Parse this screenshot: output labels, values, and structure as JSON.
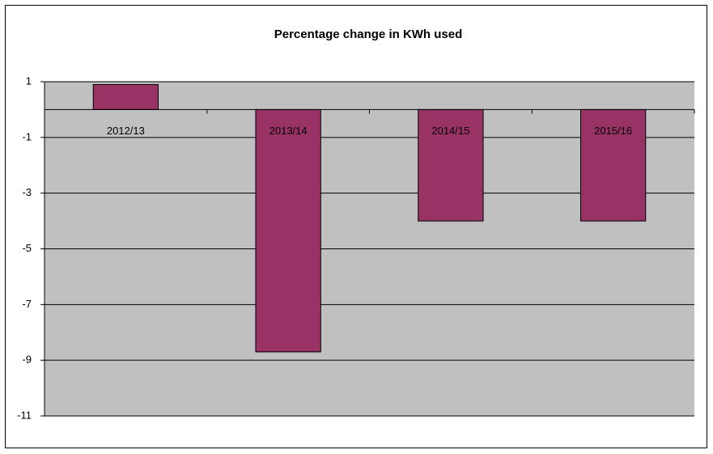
{
  "chart_data": {
    "type": "bar",
    "title": "Percentage change in KWh used",
    "categories": [
      "2012/13",
      "2013/14",
      "2014/15",
      "2015/16"
    ],
    "values": [
      0.9,
      -8.7,
      -4,
      -4
    ],
    "color": "#993366",
    "ylim": [
      -11,
      1
    ],
    "yticks": [
      1,
      -1,
      -3,
      -5,
      -7,
      -9,
      -11
    ],
    "grid": true
  }
}
